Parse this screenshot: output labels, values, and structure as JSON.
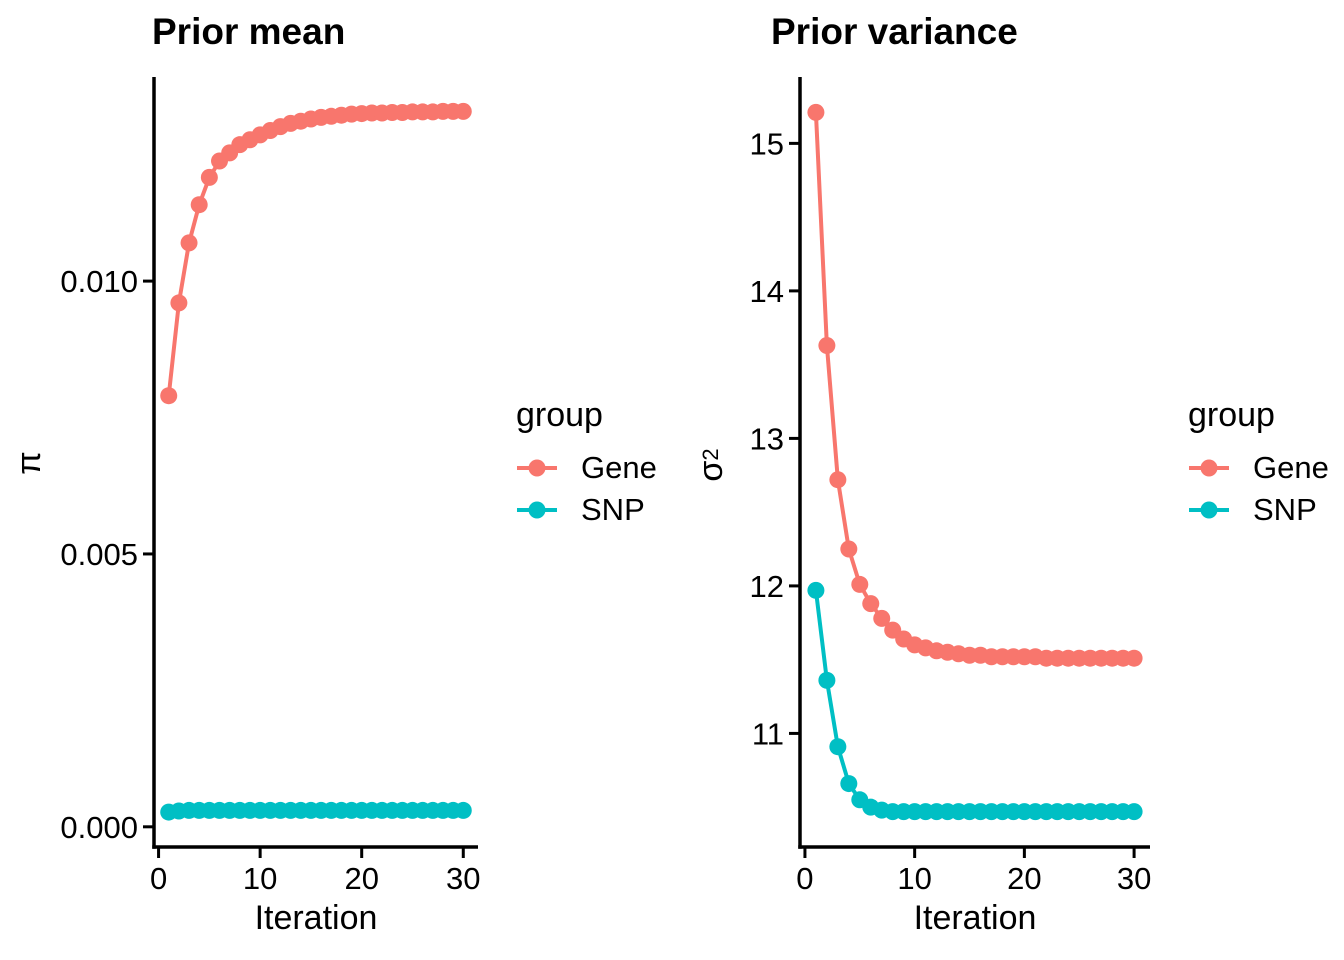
{
  "figure": {
    "background": "#ffffff",
    "text_color": "#000000",
    "legend_title": "group",
    "legend_items": [
      {
        "label": "Gene",
        "color": "#F8766D"
      },
      {
        "label": "SNP",
        "color": "#00BFC4"
      }
    ]
  },
  "chart_data": [
    {
      "type": "line",
      "title": "Prior mean",
      "xlabel": "Iteration",
      "ylabel": "π",
      "ylabel_base": "π",
      "ylabel_sup": "",
      "legend_title": "group",
      "legend_position": "right",
      "grid": false,
      "x": [
        1,
        2,
        3,
        4,
        5,
        6,
        7,
        8,
        9,
        10,
        11,
        12,
        13,
        14,
        15,
        16,
        17,
        18,
        19,
        20,
        21,
        22,
        23,
        24,
        25,
        26,
        27,
        28,
        29,
        30
      ],
      "xlim": [
        -0.45,
        31.45
      ],
      "ylim": [
        -0.00037,
        0.01374
      ],
      "x_ticks": [
        0,
        10,
        20,
        30
      ],
      "x_tick_labels": [
        "0",
        "10",
        "20",
        "30"
      ],
      "y_ticks": [
        0.0,
        0.005,
        0.01
      ],
      "y_tick_labels": [
        "0.000",
        "0.005",
        "0.010"
      ],
      "series": [
        {
          "name": "Gene",
          "color": "#F8766D",
          "values": [
            0.0079,
            0.0096,
            0.0107,
            0.0114,
            0.0119,
            0.0122,
            0.01235,
            0.0125,
            0.01259,
            0.01268,
            0.01276,
            0.01283,
            0.01289,
            0.01293,
            0.01297,
            0.013,
            0.01302,
            0.01304,
            0.01306,
            0.01307,
            0.01308,
            0.01308,
            0.01309,
            0.01309,
            0.0131,
            0.0131,
            0.0131,
            0.01311,
            0.01311,
            0.01311
          ]
        },
        {
          "name": "SNP",
          "color": "#00BFC4",
          "values": [
            0.00027,
            0.00029,
            0.0003,
            0.0003,
            0.0003,
            0.0003,
            0.0003,
            0.0003,
            0.0003,
            0.0003,
            0.0003,
            0.0003,
            0.0003,
            0.0003,
            0.0003,
            0.0003,
            0.0003,
            0.0003,
            0.0003,
            0.0003,
            0.0003,
            0.0003,
            0.0003,
            0.0003,
            0.0003,
            0.0003,
            0.0003,
            0.0003,
            0.0003,
            0.0003
          ]
        }
      ]
    },
    {
      "type": "line",
      "title": "Prior variance",
      "xlabel": "Iteration",
      "ylabel": "σ²",
      "ylabel_base": "σ",
      "ylabel_sup": "2",
      "legend_title": "group",
      "legend_position": "right",
      "grid": false,
      "x": [
        1,
        2,
        3,
        4,
        5,
        6,
        7,
        8,
        9,
        10,
        11,
        12,
        13,
        14,
        15,
        16,
        17,
        18,
        19,
        20,
        21,
        22,
        23,
        24,
        25,
        26,
        27,
        28,
        29,
        30
      ],
      "xlim": [
        -0.45,
        31.45
      ],
      "ylim": [
        10.23,
        15.45
      ],
      "x_ticks": [
        0,
        10,
        20,
        30
      ],
      "x_tick_labels": [
        "0",
        "10",
        "20",
        "30"
      ],
      "y_ticks": [
        11,
        12,
        13,
        14,
        15
      ],
      "y_tick_labels": [
        "11",
        "12",
        "13",
        "14",
        "15"
      ],
      "series": [
        {
          "name": "Gene",
          "color": "#F8766D",
          "values": [
            15.21,
            13.63,
            12.72,
            12.25,
            12.01,
            11.88,
            11.78,
            11.7,
            11.64,
            11.6,
            11.58,
            11.56,
            11.55,
            11.54,
            11.53,
            11.53,
            11.52,
            11.52,
            11.52,
            11.52,
            11.52,
            11.51,
            11.51,
            11.51,
            11.51,
            11.51,
            11.51,
            11.51,
            11.51,
            11.51
          ]
        },
        {
          "name": "SNP",
          "color": "#00BFC4",
          "values": [
            11.97,
            11.36,
            10.91,
            10.66,
            10.55,
            10.5,
            10.48,
            10.47,
            10.47,
            10.47,
            10.47,
            10.47,
            10.47,
            10.47,
            10.47,
            10.47,
            10.47,
            10.47,
            10.47,
            10.47,
            10.47,
            10.47,
            10.47,
            10.47,
            10.47,
            10.47,
            10.47,
            10.47,
            10.47,
            10.47
          ]
        }
      ]
    }
  ]
}
